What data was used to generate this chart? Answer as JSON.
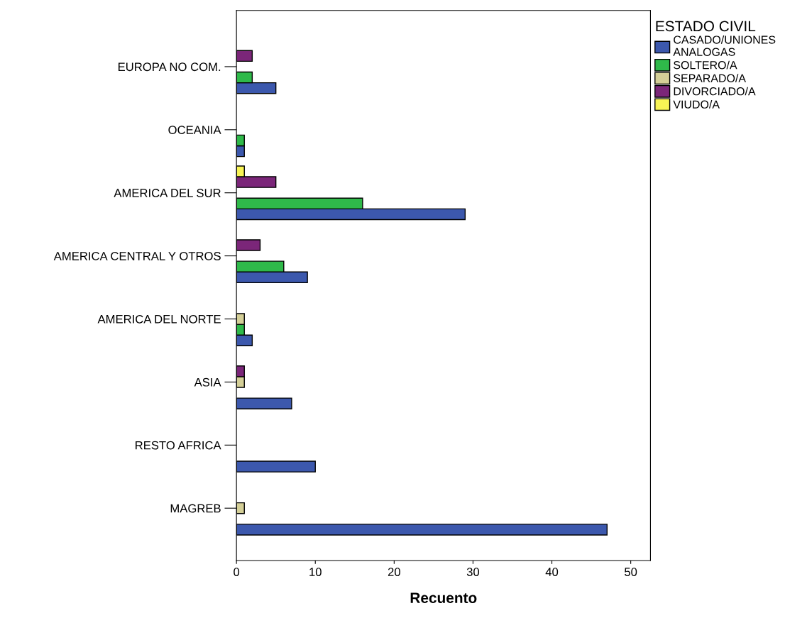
{
  "chart_data": {
    "type": "bar",
    "orientation": "horizontal",
    "xlabel": "Recuento",
    "legend_title": "ESTADO CIVIL",
    "legend": "top right",
    "grid": false,
    "categories": [
      "EUROPA NO COM.",
      "OCEANIA",
      "AMERICA DEL SUR",
      "AMERICA CENTRAL Y OTROS",
      "AMERICA DEL NORTE",
      "ASIA",
      "RESTO AFRICA",
      "MAGREB"
    ],
    "xlim": [
      0,
      52.5
    ],
    "xticks": [
      0,
      10,
      20,
      30,
      40,
      50
    ],
    "series": [
      {
        "name": "CASADO/UNIONES\nANALOGAS",
        "color": "#3c58ad",
        "values": [
          5,
          1,
          29,
          9,
          2,
          7,
          10,
          47
        ]
      },
      {
        "name": "SOLTERO/A",
        "color": "#2fb94a",
        "values": [
          2,
          1,
          16,
          6,
          1,
          null,
          null,
          null
        ]
      },
      {
        "name": "SEPARADO/A",
        "color": "#d4cf97",
        "values": [
          null,
          null,
          null,
          null,
          1,
          1,
          null,
          1
        ]
      },
      {
        "name": "DIVORCIADO/A",
        "color": "#7b2679",
        "values": [
          2,
          null,
          5,
          3,
          null,
          1,
          null,
          null
        ]
      },
      {
        "name": "VIUDO/A",
        "color": "#f8f455",
        "values": [
          null,
          null,
          1,
          null,
          null,
          null,
          null,
          null
        ]
      }
    ]
  }
}
